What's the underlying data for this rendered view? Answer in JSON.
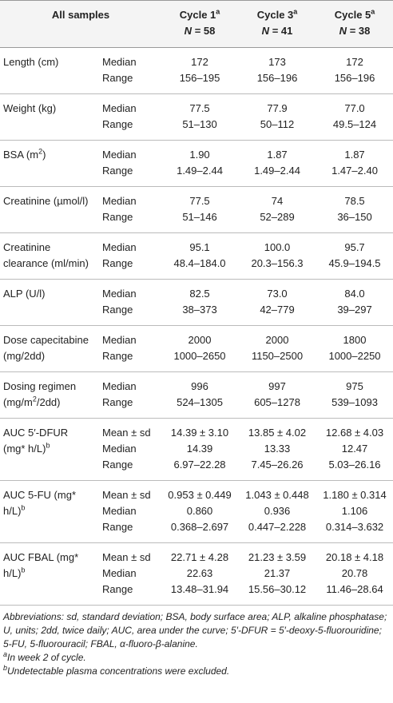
{
  "table": {
    "header": {
      "label": "All samples",
      "columns": [
        {
          "name": "Cycle 1",
          "sup": "a",
          "n_symbol": "N",
          "n_value": "= 58"
        },
        {
          "name": "Cycle 3",
          "sup": "a",
          "n_symbol": "N",
          "n_value": "= 41"
        },
        {
          "name": "Cycle 5",
          "sup": "a",
          "n_symbol": "N",
          "n_value": "= 38"
        }
      ]
    },
    "groups": [
      {
        "label": [
          [
            "Length (cm)"
          ]
        ],
        "rows": [
          {
            "stat": "Median",
            "values": [
              "172",
              "173",
              "172"
            ]
          },
          {
            "stat": "Range",
            "values": [
              "156–195",
              "156–196",
              "156–196"
            ]
          }
        ]
      },
      {
        "label": [
          [
            "Weight (kg)"
          ]
        ],
        "rows": [
          {
            "stat": "Median",
            "values": [
              "77.5",
              "77.9",
              "77.0"
            ]
          },
          {
            "stat": "Range",
            "values": [
              "51–130",
              "50–112",
              "49.5–124"
            ]
          }
        ]
      },
      {
        "label": [
          [
            "BSA (m",
            {
              "sup": "2"
            },
            ")"
          ]
        ],
        "rows": [
          {
            "stat": "Median",
            "values": [
              "1.90",
              "1.87",
              "1.87"
            ]
          },
          {
            "stat": "Range",
            "values": [
              "1.49–2.44",
              "1.49–2.44",
              "1.47–2.40"
            ]
          }
        ]
      },
      {
        "label": [
          [
            "Creatinine (µmol/l)"
          ]
        ],
        "rows": [
          {
            "stat": "Median",
            "values": [
              "77.5",
              "74",
              "78.5"
            ]
          },
          {
            "stat": "Range",
            "values": [
              "51–146",
              "52–289",
              "36–150"
            ]
          }
        ]
      },
      {
        "label": [
          [
            "Creatinine"
          ],
          [
            "clearance (ml/min)"
          ]
        ],
        "rows": [
          {
            "stat": "Median",
            "values": [
              "95.1",
              "100.0",
              "95.7"
            ]
          },
          {
            "stat": "Range",
            "values": [
              "48.4–184.0",
              "20.3–156.3",
              "45.9–194.5"
            ]
          }
        ]
      },
      {
        "label": [
          [
            "ALP (U/l)"
          ]
        ],
        "rows": [
          {
            "stat": "Median",
            "values": [
              "82.5",
              "73.0",
              "84.0"
            ]
          },
          {
            "stat": "Range",
            "values": [
              "38–373",
              "42–779",
              "39–297"
            ]
          }
        ]
      },
      {
        "label": [
          [
            "Dose capecitabine"
          ],
          [
            "(mg/2dd)"
          ]
        ],
        "rows": [
          {
            "stat": "Median",
            "values": [
              "2000",
              "2000",
              "1800"
            ]
          },
          {
            "stat": "Range",
            "values": [
              "1000–2650",
              "1150–2500",
              "1000–2250"
            ]
          }
        ]
      },
      {
        "label": [
          [
            "Dosing regimen"
          ],
          [
            "(mg/m",
            {
              "sup": "2"
            },
            "/2dd)"
          ]
        ],
        "rows": [
          {
            "stat": "Median",
            "values": [
              "996",
              "997",
              "975"
            ]
          },
          {
            "stat": "Range",
            "values": [
              "524–1305",
              "605–1278",
              "539–1093"
            ]
          }
        ]
      },
      {
        "label": [
          [
            "AUC 5′-DFUR"
          ],
          [
            "(mg* h/L)",
            {
              "sup": "b"
            }
          ]
        ],
        "rows": [
          {
            "stat": "Mean ± sd",
            "values": [
              "14.39 ± 3.10",
              "13.85 ± 4.02",
              "12.68 ± 4.03"
            ]
          },
          {
            "stat": "Median",
            "values": [
              "14.39",
              "13.33",
              "12.47"
            ]
          },
          {
            "stat": "Range",
            "values": [
              "6.97–22.28",
              "7.45–26.26",
              "5.03–26.16"
            ]
          }
        ]
      },
      {
        "label": [
          [
            "AUC 5-FU (mg*"
          ],
          [
            "h/L)",
            {
              "sup": "b"
            }
          ]
        ],
        "rows": [
          {
            "stat": "Mean ± sd",
            "values": [
              "0.953 ± 0.449",
              "1.043 ± 0.448",
              "1.180 ± 0.314"
            ]
          },
          {
            "stat": "Median",
            "values": [
              "0.860",
              "0.936",
              "1.106"
            ]
          },
          {
            "stat": "Range",
            "values": [
              "0.368–2.697",
              "0.447–2.228",
              "0.314–3.632"
            ]
          }
        ]
      },
      {
        "label": [
          [
            "AUC FBAL (mg*"
          ],
          [
            "h/L)",
            {
              "sup": "b"
            }
          ]
        ],
        "rows": [
          {
            "stat": "Mean ± sd",
            "values": [
              "22.71 ± 4.28",
              "21.23 ± 3.59",
              "20.18 ± 4.18"
            ]
          },
          {
            "stat": "Median",
            "values": [
              "22.63",
              "21.37",
              "20.78"
            ]
          },
          {
            "stat": "Range",
            "values": [
              "13.48–31.94",
              "15.56–30.12",
              "11.46–28.64"
            ]
          }
        ]
      }
    ],
    "notes": {
      "abbreviations": "Abbreviations: sd, standard deviation; BSA, body surface area; ALP, alkaline phosphatase; U, units; 2dd, twice daily; AUC, area under the curve; 5′-DFUR = 5′-deoxy-5-fluorouridine; 5-FU, 5-fluorouracil; FBAL, α-fluoro-β-alanine.",
      "footnotes": [
        {
          "mark": "a",
          "text": "In week 2 of cycle."
        },
        {
          "mark": "b",
          "text": "Undetectable plasma concentrations were excluded."
        }
      ]
    }
  }
}
